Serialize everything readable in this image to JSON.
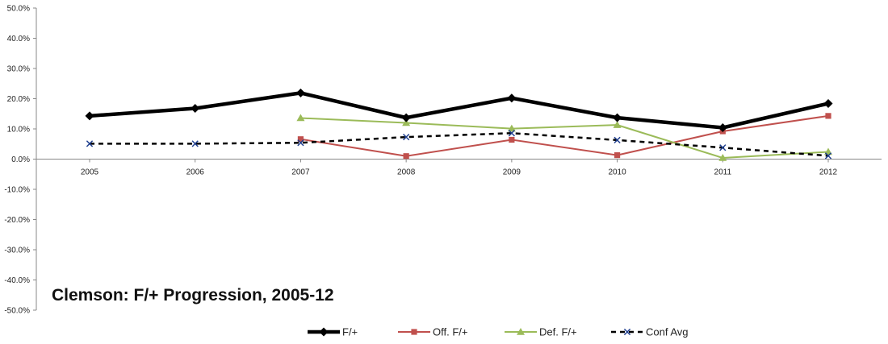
{
  "chart_data": {
    "type": "line",
    "title": "Clemson: F/+ Progression, 2005-12",
    "x": [
      "2005",
      "2006",
      "2007",
      "2008",
      "2009",
      "2010",
      "2011",
      "2012"
    ],
    "ylim": [
      -50,
      50
    ],
    "ytick_step": 10,
    "ytick_format": "percent_1dp",
    "grid": false,
    "legend_position": "bottom",
    "series": [
      {
        "name": "F/+",
        "values": [
          14.3,
          16.8,
          21.9,
          13.7,
          20.2,
          13.7,
          10.4,
          18.4
        ],
        "color": "#000000",
        "marker": "diamond",
        "dash": "solid",
        "width": 4.5
      },
      {
        "name": "Off. F/+",
        "values": [
          null,
          null,
          6.6,
          1.0,
          6.4,
          1.3,
          9.2,
          14.3
        ],
        "color": "#c0504d",
        "marker": "square",
        "dash": "solid",
        "width": 2
      },
      {
        "name": "Def. F/+",
        "values": [
          null,
          null,
          13.6,
          12.0,
          10.1,
          11.3,
          0.4,
          2.4
        ],
        "color": "#9bbb59",
        "marker": "triangle",
        "dash": "solid",
        "width": 2
      },
      {
        "name": "Conf Avg",
        "values": [
          5.1,
          5.1,
          5.4,
          7.3,
          8.6,
          6.3,
          3.8,
          1.1
        ],
        "color": "#000000",
        "marker": "x",
        "dash": "dashed",
        "width": 2.5
      }
    ]
  }
}
